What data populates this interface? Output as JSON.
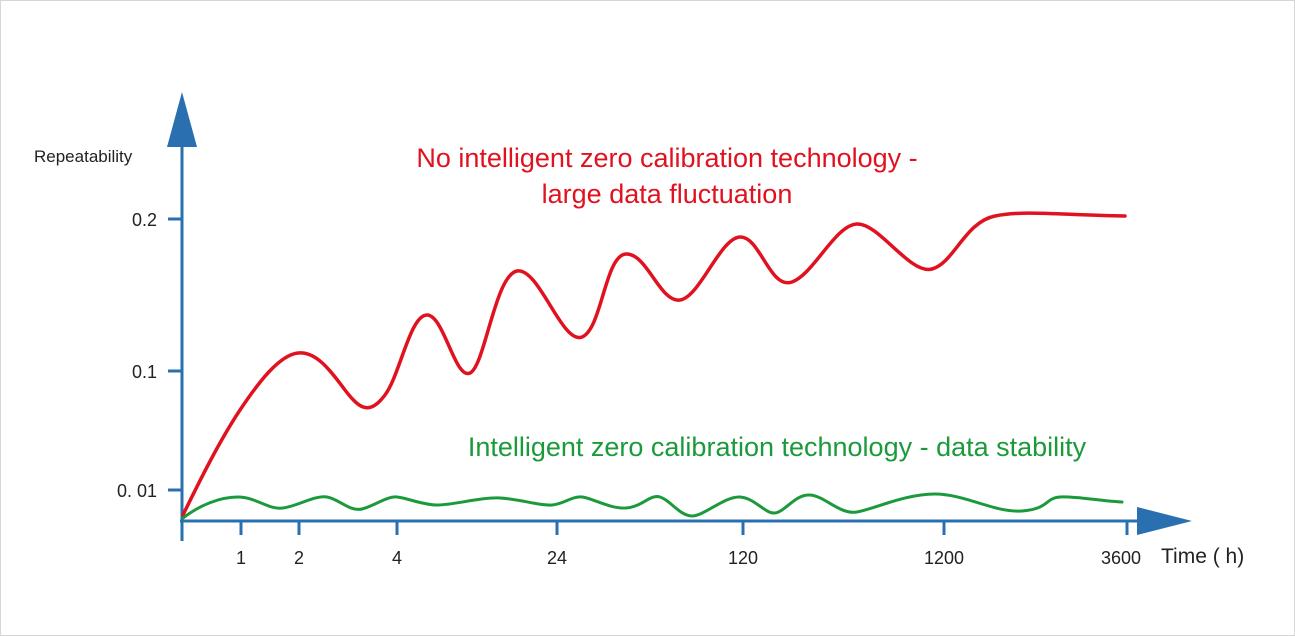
{
  "chart_data": {
    "type": "line",
    "title": "",
    "ylabel": "Repeatability",
    "xlabel": "Time ( h)",
    "y_ticks": [
      "0.2",
      "0.1",
      "0. 01"
    ],
    "x_ticks": [
      "1",
      "2",
      "4",
      "24",
      "120",
      "1200",
      "3600"
    ],
    "grid": false,
    "annotations": [
      {
        "lines": [
          "No intelligent zero calibration technology -",
          "large data fluctuation"
        ],
        "color": "#e0121f"
      },
      {
        "lines": [
          "Intelligent zero calibration technology - data stability"
        ],
        "color": "#1b9a3c"
      }
    ],
    "colors": {
      "axis": "#2a70b0",
      "red_series": "#e0121f",
      "green_series": "#1b9a3c"
    }
  }
}
